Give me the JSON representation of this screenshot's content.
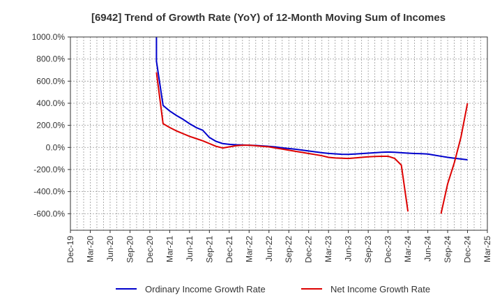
{
  "chart_data": {
    "type": "line",
    "title": "[6942]  Trend of Growth Rate (YoY) of 12-Month Moving Sum of Incomes",
    "xlabel": "",
    "ylabel": "",
    "ylim": [
      -750,
      1000
    ],
    "y_ticks": [
      1000,
      800,
      600,
      400,
      200,
      0,
      -200,
      -400,
      -600
    ],
    "y_tick_labels": [
      "1000.0%",
      "800.0%",
      "600.0%",
      "400.0%",
      "200.0%",
      "0.0%",
      "-200.0%",
      "-400.0%",
      "-600.0%"
    ],
    "x_tick_labels": [
      "Dec-19",
      "Mar-20",
      "Jun-20",
      "Sep-20",
      "Dec-20",
      "Mar-21",
      "Jun-21",
      "Sep-21",
      "Dec-21",
      "Mar-22",
      "Jun-22",
      "Sep-22",
      "Dec-22",
      "Mar-23",
      "Jun-23",
      "Sep-23",
      "Dec-23",
      "Mar-24",
      "Jun-24",
      "Sep-24",
      "Dec-24",
      "Mar-25"
    ],
    "grid": true,
    "legend_position": "bottom",
    "series": [
      {
        "name": "Ordinary Income Growth Rate",
        "color": "#0000cc",
        "points": [
          [
            "Jan-21",
            1000
          ],
          [
            "Jan-21",
            780
          ],
          [
            "Feb-21",
            380
          ],
          [
            "Mar-21",
            330
          ],
          [
            "Apr-21",
            290
          ],
          [
            "May-21",
            255
          ],
          [
            "Jun-21",
            215
          ],
          [
            "Jul-21",
            180
          ],
          [
            "Aug-21",
            155
          ],
          [
            "Sep-21",
            90
          ],
          [
            "Oct-21",
            55
          ],
          [
            "Nov-21",
            35
          ],
          [
            "Dec-21",
            28
          ],
          [
            "Jan-22",
            24
          ],
          [
            "Feb-22",
            22
          ],
          [
            "Mar-22",
            20
          ],
          [
            "Apr-22",
            18
          ],
          [
            "May-22",
            14
          ],
          [
            "Jun-22",
            10
          ],
          [
            "Jul-22",
            4
          ],
          [
            "Aug-22",
            -4
          ],
          [
            "Sep-22",
            -10
          ],
          [
            "Oct-22",
            -16
          ],
          [
            "Nov-22",
            -24
          ],
          [
            "Dec-22",
            -32
          ],
          [
            "Jan-23",
            -40
          ],
          [
            "Feb-23",
            -48
          ],
          [
            "Mar-23",
            -54
          ],
          [
            "Apr-23",
            -58
          ],
          [
            "May-23",
            -62
          ],
          [
            "Jun-23",
            -63
          ],
          [
            "Jul-23",
            -60
          ],
          [
            "Aug-23",
            -56
          ],
          [
            "Sep-23",
            -52
          ],
          [
            "Oct-23",
            -48
          ],
          [
            "Nov-23",
            -44
          ],
          [
            "Dec-23",
            -42
          ],
          [
            "Jan-24",
            -44
          ],
          [
            "Feb-24",
            -48
          ],
          [
            "Mar-24",
            -52
          ],
          [
            "Apr-24",
            -55
          ],
          [
            "May-24",
            -57
          ],
          [
            "Jun-24",
            -60
          ],
          [
            "Jul-24",
            -70
          ],
          [
            "Aug-24",
            -80
          ],
          [
            "Sep-24",
            -90
          ],
          [
            "Oct-24",
            -98
          ],
          [
            "Nov-24",
            -105
          ],
          [
            "Dec-24",
            -112
          ]
        ]
      },
      {
        "name": "Net Income Growth Rate",
        "color": "#dd0000",
        "points": [
          [
            "Jan-21",
            680
          ],
          [
            "Feb-21",
            215
          ],
          [
            "Mar-21",
            180
          ],
          [
            "Apr-21",
            150
          ],
          [
            "May-21",
            125
          ],
          [
            "Jun-21",
            100
          ],
          [
            "Jul-21",
            80
          ],
          [
            "Aug-21",
            60
          ],
          [
            "Sep-21",
            35
          ],
          [
            "Oct-21",
            10
          ],
          [
            "Nov-21",
            -5
          ],
          [
            "Dec-21",
            5
          ],
          [
            "Jan-22",
            15
          ],
          [
            "Feb-22",
            20
          ],
          [
            "Mar-22",
            20
          ],
          [
            "Apr-22",
            15
          ],
          [
            "May-22",
            10
          ],
          [
            "Jun-22",
            5
          ],
          [
            "Jul-22",
            -5
          ],
          [
            "Aug-22",
            -15
          ],
          [
            "Sep-22",
            -25
          ],
          [
            "Oct-22",
            -35
          ],
          [
            "Nov-22",
            -45
          ],
          [
            "Dec-22",
            -55
          ],
          [
            "Jan-23",
            -65
          ],
          [
            "Feb-23",
            -75
          ],
          [
            "Mar-23",
            -90
          ],
          [
            "Apr-23",
            -95
          ],
          [
            "May-23",
            -98
          ],
          [
            "Jun-23",
            -100
          ],
          [
            "Jul-23",
            -95
          ],
          [
            "Aug-23",
            -90
          ],
          [
            "Sep-23",
            -85
          ],
          [
            "Oct-23",
            -82
          ],
          [
            "Nov-23",
            -80
          ],
          [
            "Dec-23",
            -80
          ],
          [
            "Jan-24",
            -100
          ],
          [
            "Feb-24",
            -160
          ],
          [
            "Mar-24",
            -580
          ],
          null,
          [
            "Aug-24",
            -600
          ],
          [
            "Sep-24",
            -330
          ],
          [
            "Oct-24",
            -140
          ],
          [
            "Nov-24",
            90
          ],
          [
            "Dec-24",
            400
          ]
        ]
      }
    ]
  }
}
